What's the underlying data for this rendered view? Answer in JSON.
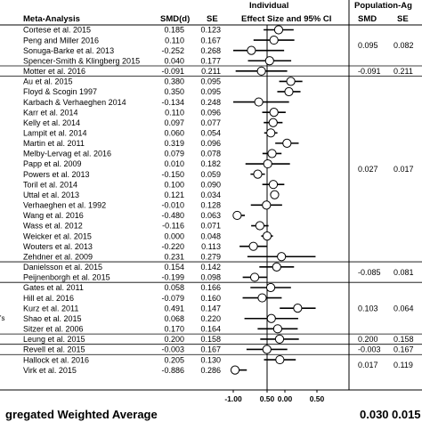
{
  "header": {
    "group_individual": "Individual",
    "group_population": "Population-Ag",
    "col_meta": "Meta-Analysis",
    "col_smd": "SMD(d)",
    "col_se": "SE",
    "col_effect": "Effect Size and 95% CI",
    "col_pop_smd": "SMD",
    "col_pop_se": "SE"
  },
  "chart_data": {
    "type": "forest",
    "xlim": [
      -1.0,
      1.0
    ],
    "x_ticks": [
      "-1.00",
      "0.50",
      "0.00",
      "0.50"
    ],
    "studies": [
      {
        "name": "Cortese et al. 2015",
        "smd": "0.185",
        "se": "0.123",
        "d": 0.185,
        "s": 0.123,
        "pi": 0
      },
      {
        "name": "Peng and Miller 2016",
        "smd": "0.110",
        "se": "0.167",
        "d": 0.11,
        "s": 0.167,
        "pi": 0
      },
      {
        "name": "Sonuga-Barke et al. 2013",
        "smd": "-0.252",
        "se": "0.268",
        "d": -0.252,
        "s": 0.268,
        "pi": 0
      },
      {
        "name": "Spencer-Smith & Klingberg 2015",
        "smd": "0.040",
        "se": "0.177",
        "d": 0.04,
        "s": 0.177,
        "pi": 0
      },
      {
        "name": "Motter et al. 2016",
        "smd": "-0.091",
        "se": "0.211",
        "d": -0.091,
        "s": 0.211,
        "pi": 1
      },
      {
        "name": "Au et al. 2015",
        "smd": "0.380",
        "se": "0.095",
        "d": 0.38,
        "s": 0.095,
        "pi": 2
      },
      {
        "name": "Floyd & Scogin 1997",
        "smd": "0.350",
        "se": "0.095",
        "d": 0.35,
        "s": 0.095,
        "pi": 2
      },
      {
        "name": "Karbach & Verhaeghen 2014",
        "smd": "-0.134",
        "se": "0.248",
        "d": -0.134,
        "s": 0.248,
        "pi": 2
      },
      {
        "name": "Karr et al. 2014",
        "smd": "0.110",
        "se": "0.096",
        "d": 0.11,
        "s": 0.096,
        "pi": 2
      },
      {
        "name": "Kelly et al. 2014",
        "smd": "0.097",
        "se": "0.077",
        "d": 0.097,
        "s": 0.077,
        "pi": 2
      },
      {
        "name": "Lampit et al. 2014",
        "smd": "0.060",
        "se": "0.054",
        "d": 0.06,
        "s": 0.054,
        "pi": 2
      },
      {
        "name": "Martin et al. 2011",
        "smd": "0.319",
        "se": "0.096",
        "d": 0.319,
        "s": 0.096,
        "pi": 2
      },
      {
        "name": "Melby-Lervag et al. 2016",
        "smd": "0.079",
        "se": "0.078",
        "d": 0.079,
        "s": 0.078,
        "pi": 2
      },
      {
        "name": "Papp et al. 2009",
        "smd": "0.010",
        "se": "0.182",
        "d": 0.01,
        "s": 0.182,
        "pi": 2
      },
      {
        "name": "Powers et al. 2013",
        "smd": "-0.150",
        "se": "0.059",
        "d": -0.15,
        "s": 0.059,
        "pi": 2
      },
      {
        "name": "Toril et al. 2014",
        "smd": "0.100",
        "se": "0.090",
        "d": 0.1,
        "s": 0.09,
        "pi": 2
      },
      {
        "name": "Uttal et al. 2013",
        "smd": "0.121",
        "se": "0.034",
        "d": 0.121,
        "s": 0.034,
        "pi": 2
      },
      {
        "name": "Verhaeghen et al. 1992",
        "smd": "-0.010",
        "se": "0.128",
        "d": -0.01,
        "s": 0.128,
        "pi": 2
      },
      {
        "name": "Wang et al. 2016",
        "smd": "-0.480",
        "se": "0.063",
        "d": -0.48,
        "s": 0.063,
        "pi": 2
      },
      {
        "name": "Wass et al. 2012",
        "smd": "-0.116",
        "se": "0.071",
        "d": -0.116,
        "s": 0.071,
        "pi": 2
      },
      {
        "name": "Weicker et al. 2015",
        "smd": "0.000",
        "se": "0.048",
        "d": 0.0,
        "s": 0.048,
        "pi": 2
      },
      {
        "name": "Wouters et al. 2013",
        "smd": "-0.220",
        "se": "0.113",
        "d": -0.22,
        "s": 0.113,
        "pi": 2
      },
      {
        "name": "Zehdner et al. 2009",
        "smd": "0.231",
        "se": "0.279",
        "d": 0.231,
        "s": 0.279,
        "pi": 2
      },
      {
        "name": "Danielsson et al. 2015",
        "smd": "0.154",
        "se": "0.142",
        "d": 0.154,
        "s": 0.142,
        "pi": 3
      },
      {
        "name": "Peijnenborgh et al. 2015",
        "smd": "-0.199",
        "se": "0.098",
        "d": -0.199,
        "s": 0.098,
        "pi": 3
      },
      {
        "name": "Gates et al. 2011",
        "smd": "0.058",
        "se": "0.166",
        "d": 0.058,
        "s": 0.166,
        "pi": 4
      },
      {
        "name": "Hill et al. 2016",
        "smd": "-0.079",
        "se": "0.160",
        "d": -0.079,
        "s": 0.16,
        "pi": 4
      },
      {
        "name": "Kurz et al. 2011",
        "smd": "0.491",
        "se": "0.147",
        "d": 0.491,
        "s": 0.147,
        "pi": 4
      },
      {
        "name": "Shao et al. 2015",
        "smd": "0.068",
        "se": "0.220",
        "d": 0.068,
        "s": 0.22,
        "pi": 4
      },
      {
        "name": "Sitzer et al. 2006",
        "smd": "0.170",
        "se": "0.164",
        "d": 0.17,
        "s": 0.164,
        "pi": 4
      },
      {
        "name": "Leung et al. 2015",
        "smd": "0.200",
        "se": "0.158",
        "d": 0.2,
        "s": 0.158,
        "pi": 5
      },
      {
        "name": "Revell et al. 2015",
        "smd": "-0.003",
        "se": "0.167",
        "d": -0.003,
        "s": 0.167,
        "pi": 6
      },
      {
        "name": "Hallock et al. 2016",
        "smd": "0.205",
        "se": "0.130",
        "d": 0.205,
        "s": 0.13,
        "pi": 7
      },
      {
        "name": "Virk et al. 2015",
        "smd": "-0.886",
        "se": "0.286",
        "d": -0.886,
        "s": 0.286,
        "pi": 7
      }
    ],
    "population_groups": [
      {
        "smd": "0.095",
        "se": "0.082"
      },
      {
        "smd": "-0.091",
        "se": "0.211"
      },
      {
        "smd": "0.027",
        "se": "0.017"
      },
      {
        "smd": "-0.085",
        "se": "0.081"
      },
      {
        "smd": "0.103",
        "se": "0.064"
      },
      {
        "smd": "0.200",
        "se": "0.158"
      },
      {
        "smd": "-0.003",
        "se": "0.167"
      },
      {
        "smd": "0.017",
        "se": "0.119"
      }
    ],
    "side_marker": "'s",
    "footer_label": "gregated Weighted Average",
    "footer_smd": "0.030",
    "footer_se": "0.015"
  }
}
